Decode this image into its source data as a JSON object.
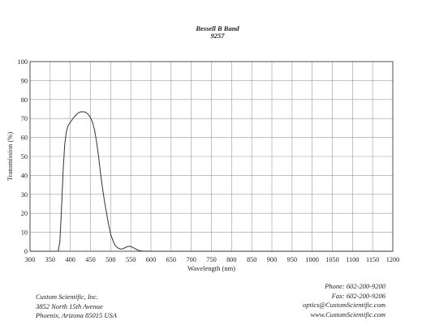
{
  "chart_data": {
    "type": "line",
    "title": "Bessell B Band",
    "subtitle": "9257",
    "xlabel": "Wavelength (nm)",
    "ylabel": "Transmission (%)",
    "xlim": [
      300,
      1200
    ],
    "ylim": [
      0,
      100
    ],
    "x_ticks": [
      300,
      350,
      400,
      450,
      500,
      550,
      600,
      650,
      700,
      750,
      800,
      850,
      900,
      950,
      1000,
      1050,
      1100,
      1150,
      1200
    ],
    "y_ticks": [
      0,
      10,
      20,
      30,
      40,
      50,
      60,
      70,
      80,
      90,
      100
    ],
    "grid": true,
    "series": [
      {
        "x": [
          300,
          370,
          374,
          378,
          382,
          386,
          390,
          395,
          400,
          405,
          410,
          415,
          420,
          425,
          430,
          435,
          440,
          445,
          450,
          455,
          460,
          465,
          470,
          475,
          480,
          485,
          490,
          495,
          500,
          505,
          510,
          515,
          520,
          525,
          530,
          535,
          540,
          545,
          550,
          555,
          560,
          565,
          570,
          575,
          580,
          590,
          600,
          650,
          700,
          800,
          900,
          1000,
          1100,
          1200
        ],
        "y": [
          0,
          0,
          5,
          22,
          42,
          56,
          63,
          66.5,
          68,
          69.5,
          71,
          72,
          73,
          73.5,
          73.5,
          73.5,
          73,
          72,
          70.5,
          68,
          64,
          58,
          50,
          41,
          33,
          26,
          20,
          14,
          9,
          6,
          3.5,
          2.2,
          1.5,
          1.2,
          1.3,
          1.8,
          2.3,
          2.6,
          2.5,
          2.0,
          1.4,
          0.9,
          0.4,
          0.2,
          0.1,
          0.05,
          0,
          0,
          0,
          0,
          0,
          0,
          0,
          0
        ]
      }
    ]
  },
  "footer": {
    "company": "Custom Scientific, Inc.",
    "address1": "3852 North 15th Avenue",
    "address2": "Phoenix, Arizona 85015 USA",
    "phone": "Phone:  602-200-9200",
    "fax": "Fax:  602-200-9206",
    "email": "optics@CustomScientific.com",
    "web": "www.CustomScientific.com"
  }
}
